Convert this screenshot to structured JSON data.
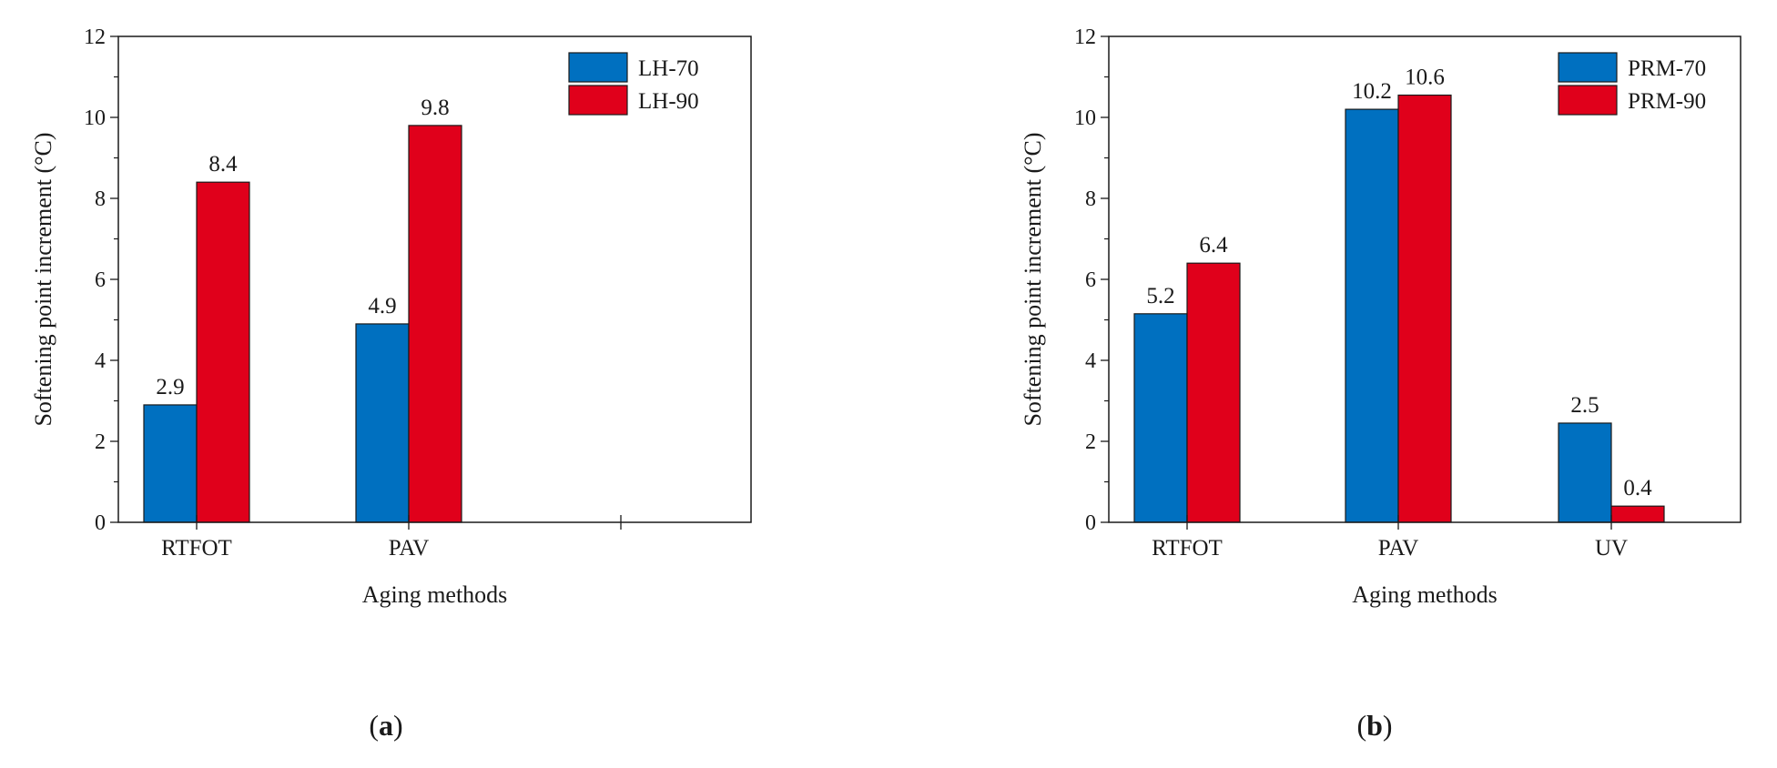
{
  "chart_data": [
    {
      "type": "bar",
      "panel": "a",
      "categories": [
        "RTFOT",
        "PAV",
        ""
      ],
      "series": [
        {
          "name": "LH-70",
          "color": "#0070c0",
          "values": [
            2.9,
            4.9,
            null
          ],
          "labels": [
            "2.9",
            "4.9",
            ""
          ]
        },
        {
          "name": "LH-90",
          "color": "#e0001b",
          "values": [
            8.4,
            9.8,
            null
          ],
          "labels": [
            "8.4",
            "9.8",
            ""
          ]
        }
      ],
      "xlabel": "Aging methods",
      "ylabel": "Softening point increment (°C)",
      "ylim": [
        0,
        12
      ],
      "yticks": [
        0,
        2,
        4,
        6,
        8,
        10,
        12
      ],
      "legend": "top-right"
    },
    {
      "type": "bar",
      "panel": "b",
      "categories": [
        "RTFOT",
        "PAV",
        "UV"
      ],
      "series": [
        {
          "name": "PRM-70",
          "color": "#0070c0",
          "values": [
            5.15,
            10.2,
            2.45
          ],
          "labels": [
            "5.2",
            "10.2",
            "2.5"
          ]
        },
        {
          "name": "PRM-90",
          "color": "#e0001b",
          "values": [
            6.4,
            10.55,
            0.4
          ],
          "labels": [
            "6.4",
            "10.6",
            "0.4"
          ]
        }
      ],
      "xlabel": "Aging methods",
      "ylabel": "Softening point increment (°C)",
      "ylim": [
        0,
        12
      ],
      "yticks": [
        0,
        2,
        4,
        6,
        8,
        10,
        12
      ],
      "legend": "top-right"
    }
  ],
  "panel_labels": {
    "a": {
      "open": "(",
      "letter": "a",
      "close": ")"
    },
    "b": {
      "open": "(",
      "letter": "b",
      "close": ")"
    }
  }
}
